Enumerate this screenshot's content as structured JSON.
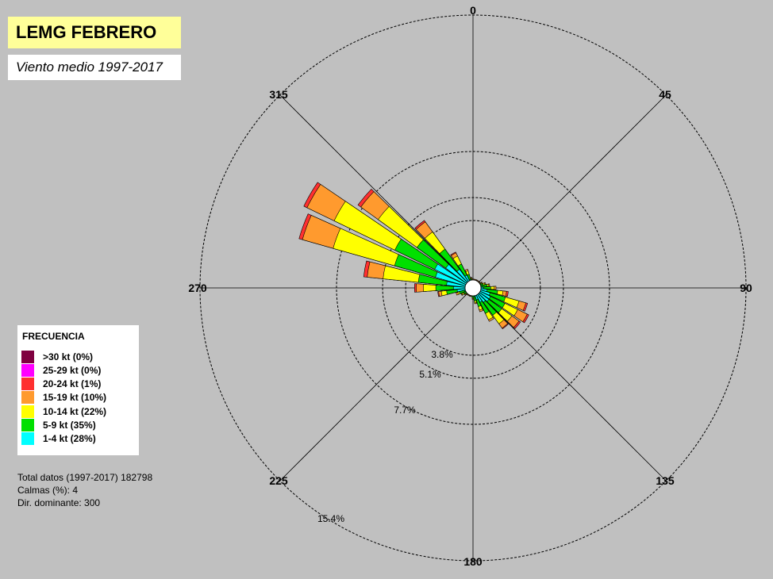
{
  "header": {
    "title": "LEMG FEBRERO",
    "subtitle": "Viento medio 1997-2017"
  },
  "legend": {
    "title": "FRECUENCIA",
    "items": [
      {
        "label": ">30 kt (0%)",
        "color": "#800040"
      },
      {
        "label": "25-29 kt (0%)",
        "color": "#ff00ff"
      },
      {
        "label": "20-24 kt (1%)",
        "color": "#ff3030"
      },
      {
        "label": "15-19 kt (10%)",
        "color": "#ff9a2e"
      },
      {
        "label": "10-14 kt (22%)",
        "color": "#ffff00"
      },
      {
        "label": "5-9 kt (35%)",
        "color": "#00e000"
      },
      {
        "label": "1-4 kt (28%)",
        "color": "#00ffff"
      }
    ]
  },
  "stats": {
    "total": "Total datos (1997-2017) 182798",
    "calms": "Calmas (%): 4",
    "dominant": "Dir. dominante:  300"
  },
  "chart_data": {
    "type": "wind_rose",
    "direction_labels": [
      "0",
      "45",
      "90",
      "135",
      "180",
      "225",
      "270",
      "315"
    ],
    "ring_labels": [
      "3.8%",
      "5.1%",
      "7.7%",
      "15.4%"
    ],
    "ring_values": [
      3.8,
      5.1,
      7.7,
      15.4
    ],
    "speed_bins": [
      ">30 kt",
      "25-29 kt",
      "20-24 kt",
      "15-19 kt",
      "10-14 kt",
      "5-9 kt",
      "1-4 kt"
    ],
    "cumulative_order": [
      "1-4 kt",
      "5-9 kt",
      "10-14 kt",
      "15-19 kt",
      "20-24 kt",
      "25-29 kt",
      ">30 kt"
    ],
    "sectors": [
      {
        "dir": 0,
        "cum": [
          0.3,
          0.4,
          0.45,
          0.5,
          0.5,
          0.5,
          0.5
        ]
      },
      {
        "dir": 10,
        "cum": [
          0.3,
          0.4,
          0.45,
          0.5,
          0.5,
          0.5,
          0.5
        ]
      },
      {
        "dir": 20,
        "cum": [
          0.3,
          0.4,
          0.45,
          0.5,
          0.5,
          0.5,
          0.5
        ]
      },
      {
        "dir": 30,
        "cum": [
          0.3,
          0.4,
          0.45,
          0.5,
          0.5,
          0.5,
          0.5
        ]
      },
      {
        "dir": 40,
        "cum": [
          0.3,
          0.4,
          0.45,
          0.5,
          0.5,
          0.5,
          0.5
        ]
      },
      {
        "dir": 50,
        "cum": [
          0.3,
          0.4,
          0.45,
          0.5,
          0.5,
          0.5,
          0.5
        ]
      },
      {
        "dir": 60,
        "cum": [
          0.35,
          0.5,
          0.55,
          0.6,
          0.6,
          0.6,
          0.6
        ]
      },
      {
        "dir": 70,
        "cum": [
          0.4,
          0.6,
          0.7,
          0.75,
          0.75,
          0.75,
          0.75
        ]
      },
      {
        "dir": 80,
        "cum": [
          0.5,
          0.8,
          0.9,
          0.95,
          0.95,
          0.95,
          0.95
        ]
      },
      {
        "dir": 90,
        "cum": [
          0.6,
          1.0,
          1.2,
          1.3,
          1.3,
          1.3,
          1.3
        ]
      },
      {
        "dir": 100,
        "cum": [
          0.8,
          1.4,
          1.7,
          1.9,
          2.0,
          2.0,
          2.0
        ]
      },
      {
        "dir": 110,
        "cum": [
          1.0,
          1.9,
          2.7,
          3.1,
          3.2,
          3.2,
          3.2
        ]
      },
      {
        "dir": 120,
        "cum": [
          1.1,
          2.0,
          2.8,
          3.4,
          3.5,
          3.5,
          3.5
        ]
      },
      {
        "dir": 130,
        "cum": [
          1.1,
          2.0,
          2.7,
          3.2,
          3.3,
          3.3,
          3.3
        ]
      },
      {
        "dir": 140,
        "cum": [
          1.0,
          1.9,
          2.5,
          2.8,
          2.85,
          2.85,
          2.85
        ]
      },
      {
        "dir": 150,
        "cum": [
          0.9,
          1.6,
          2.0,
          2.1,
          2.1,
          2.1,
          2.1
        ]
      },
      {
        "dir": 160,
        "cum": [
          0.7,
          1.1,
          1.3,
          1.4,
          1.4,
          1.4,
          1.4
        ]
      },
      {
        "dir": 170,
        "cum": [
          0.5,
          0.75,
          0.85,
          0.9,
          0.9,
          0.9,
          0.9
        ]
      },
      {
        "dir": 180,
        "cum": [
          0.4,
          0.55,
          0.6,
          0.65,
          0.65,
          0.65,
          0.65
        ]
      },
      {
        "dir": 190,
        "cum": [
          0.3,
          0.45,
          0.5,
          0.5,
          0.5,
          0.5,
          0.5
        ]
      },
      {
        "dir": 200,
        "cum": [
          0.3,
          0.4,
          0.45,
          0.5,
          0.5,
          0.5,
          0.5
        ]
      },
      {
        "dir": 210,
        "cum": [
          0.3,
          0.4,
          0.45,
          0.5,
          0.5,
          0.5,
          0.5
        ]
      },
      {
        "dir": 220,
        "cum": [
          0.3,
          0.4,
          0.45,
          0.5,
          0.5,
          0.5,
          0.5
        ]
      },
      {
        "dir": 230,
        "cum": [
          0.35,
          0.5,
          0.55,
          0.6,
          0.6,
          0.6,
          0.6
        ]
      },
      {
        "dir": 240,
        "cum": [
          0.4,
          0.6,
          0.7,
          0.75,
          0.75,
          0.75,
          0.75
        ]
      },
      {
        "dir": 250,
        "cum": [
          0.5,
          0.8,
          0.9,
          1.0,
          1.0,
          1.0,
          1.0
        ]
      },
      {
        "dir": 260,
        "cum": [
          0.9,
          1.5,
          1.8,
          1.95,
          2.0,
          2.0,
          2.0
        ]
      },
      {
        "dir": 270,
        "cum": [
          1.1,
          2.1,
          2.8,
          3.2,
          3.3,
          3.3,
          3.3
        ]
      },
      {
        "dir": 280,
        "cum": [
          1.5,
          3.1,
          5.1,
          6.0,
          6.2,
          6.2,
          6.2
        ]
      },
      {
        "dir": 290,
        "cum": [
          2.2,
          4.6,
          8.2,
          10.0,
          10.2,
          10.2,
          10.2
        ]
      },
      {
        "dir": 300,
        "cum": [
          2.4,
          4.9,
          8.7,
          10.4,
          10.6,
          10.6,
          10.6
        ]
      },
      {
        "dir": 310,
        "cum": [
          1.9,
          3.9,
          6.6,
          7.8,
          8.0,
          8.0,
          8.0
        ]
      },
      {
        "dir": 320,
        "cum": [
          1.3,
          2.7,
          3.9,
          4.6,
          4.7,
          4.7,
          4.7
        ]
      },
      {
        "dir": 330,
        "cum": [
          0.8,
          1.5,
          2.0,
          2.2,
          2.25,
          2.25,
          2.25
        ]
      },
      {
        "dir": 340,
        "cum": [
          0.5,
          0.8,
          1.0,
          1.1,
          1.1,
          1.1,
          1.1
        ]
      },
      {
        "dir": 350,
        "cum": [
          0.35,
          0.5,
          0.55,
          0.6,
          0.6,
          0.6,
          0.6
        ]
      }
    ]
  }
}
